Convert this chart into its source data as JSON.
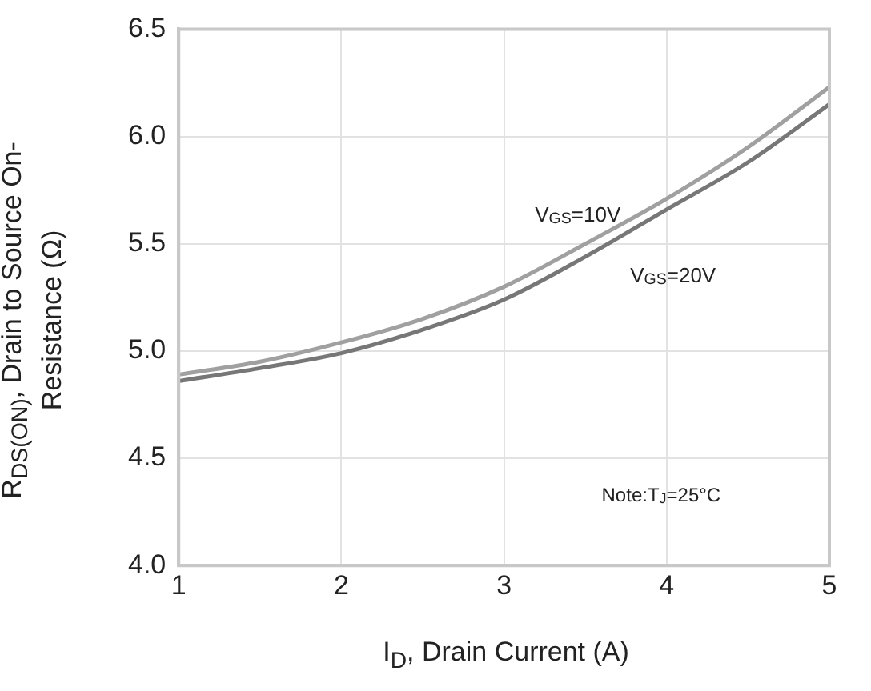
{
  "chart_data": {
    "type": "line",
    "xlabel": "I$_{D}$, Drain Current (A)",
    "ylabel": "R$_{DS(ON)}$, Drain to Source On-Resistance (Ω)",
    "x": [
      1,
      1.5,
      2,
      2.5,
      3,
      3.5,
      4,
      4.5,
      5
    ],
    "series": [
      {
        "name": "V$_{GS}$=10V",
        "color": "#a0a0a0",
        "values": [
          4.89,
          4.95,
          5.04,
          5.15,
          5.3,
          5.5,
          5.71,
          5.95,
          6.23
        ]
      },
      {
        "name": "V$_{GS}$=20V",
        "color": "#777777",
        "values": [
          4.86,
          4.92,
          4.99,
          5.1,
          5.24,
          5.44,
          5.66,
          5.88,
          6.15
        ]
      }
    ],
    "xlim": [
      1,
      5
    ],
    "xticks": [
      1,
      2,
      3,
      4,
      5
    ],
    "ylim": [
      4,
      6.5
    ],
    "yticks": [
      {
        "value": 4,
        "label": "4.0"
      },
      4.5,
      {
        "value": 5,
        "label": "5.0"
      },
      5.5,
      {
        "value": 6,
        "label": "6.0"
      },
      6.5
    ],
    "grid": true,
    "legend": false,
    "marker": "none",
    "line_style": "solid",
    "annotations": [
      "Note:T$_{J}$=25°C"
    ]
  }
}
